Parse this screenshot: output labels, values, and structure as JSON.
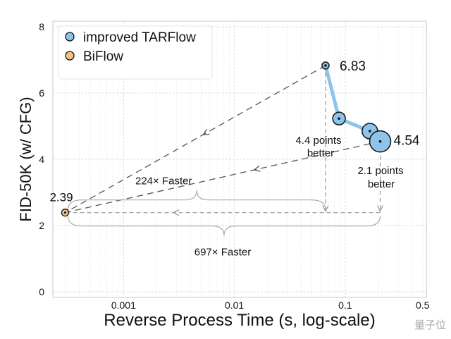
{
  "chart_data": {
    "type": "scatter",
    "xlabel": "Reverse Process Time (s, log-scale)",
    "ylabel": "FID-50K (w/ CFG)",
    "xscale": "log",
    "xlim": [
      0.00023,
      0.54
    ],
    "ylim": [
      -0.17,
      8.17
    ],
    "xticks": [
      {
        "v": 0.001,
        "label": "0.001"
      },
      {
        "v": 0.01,
        "label": "0.01"
      },
      {
        "v": 0.1,
        "label": "0.1"
      },
      {
        "v": 0.5,
        "label": "0.5"
      }
    ],
    "yticks": [
      {
        "v": 0,
        "label": "0"
      },
      {
        "v": 2,
        "label": "2"
      },
      {
        "v": 4,
        "label": "4"
      },
      {
        "v": 6,
        "label": "6"
      },
      {
        "v": 8,
        "label": "8"
      }
    ],
    "grid": true,
    "legend_position": "top-left",
    "series": [
      {
        "name": "improved TARFlow",
        "color": "#8ec3ea",
        "line": true,
        "points": [
          {
            "x": 0.0665,
            "y": 6.83,
            "size": 1
          },
          {
            "x": 0.088,
            "y": 5.23,
            "size": 2
          },
          {
            "x": 0.167,
            "y": 4.85,
            "size": 3
          },
          {
            "x": 0.207,
            "y": 4.54,
            "size": 4
          }
        ]
      },
      {
        "name": "BiFlow",
        "color": "#f2c28a",
        "line": false,
        "points": [
          {
            "x": 0.000297,
            "y": 2.39,
            "size": 1
          }
        ]
      }
    ],
    "annotations": {
      "val_high": "6.83",
      "val_low": "4.54",
      "val_biflow": "2.39",
      "better1": [
        "4.4 points",
        "better"
      ],
      "better2": [
        "2.1 points",
        "better"
      ],
      "faster1": "224× Faster",
      "faster2": "697× Faster"
    }
  },
  "watermark": "量子位"
}
